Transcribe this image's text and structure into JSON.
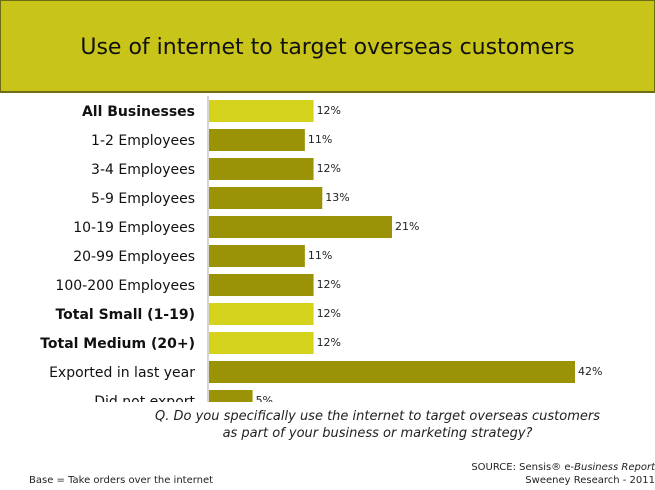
{
  "title": "Use of internet to target overseas customers",
  "chart_data": {
    "type": "bar",
    "orientation": "horizontal",
    "categories": [
      "All Businesses",
      "1-2 Employees",
      "3-4 Employees",
      "5-9 Employees",
      "10-19 Employees",
      "20-99 Employees",
      "100-200 Employees",
      "Total Small (1-19)",
      "Total Medium (20+)",
      "Exported in last year",
      "Did not export"
    ],
    "values": [
      12,
      11,
      12,
      13,
      21,
      11,
      12,
      12,
      12,
      42,
      5
    ],
    "value_labels": [
      "12%",
      "11%",
      "12%",
      "13%",
      "21%",
      "11%",
      "12%",
      "12%",
      "12%",
      "42%",
      "5%"
    ],
    "bold_categories": [
      "All Businesses",
      "Total Small (1-19)",
      "Total Medium (20+)"
    ],
    "highlight_categories": [
      "All Businesses",
      "Total Small (1-19)",
      "Total Medium (20+)"
    ],
    "xlim": [
      0,
      42
    ],
    "grid": false,
    "colors": {
      "highlight": "#d4d21c",
      "default": "#9a9308",
      "header": "#c9c41a"
    }
  },
  "question": "Q. Do you specifically use the internet to target overseas customers as part of your business or marketing strategy?",
  "base_note": "Base = Take orders over the internet",
  "source": {
    "prefix": "SOURCE: Sensis® e-",
    "publication": "Business Report",
    "line2": "Sweeney Research - 2011"
  }
}
